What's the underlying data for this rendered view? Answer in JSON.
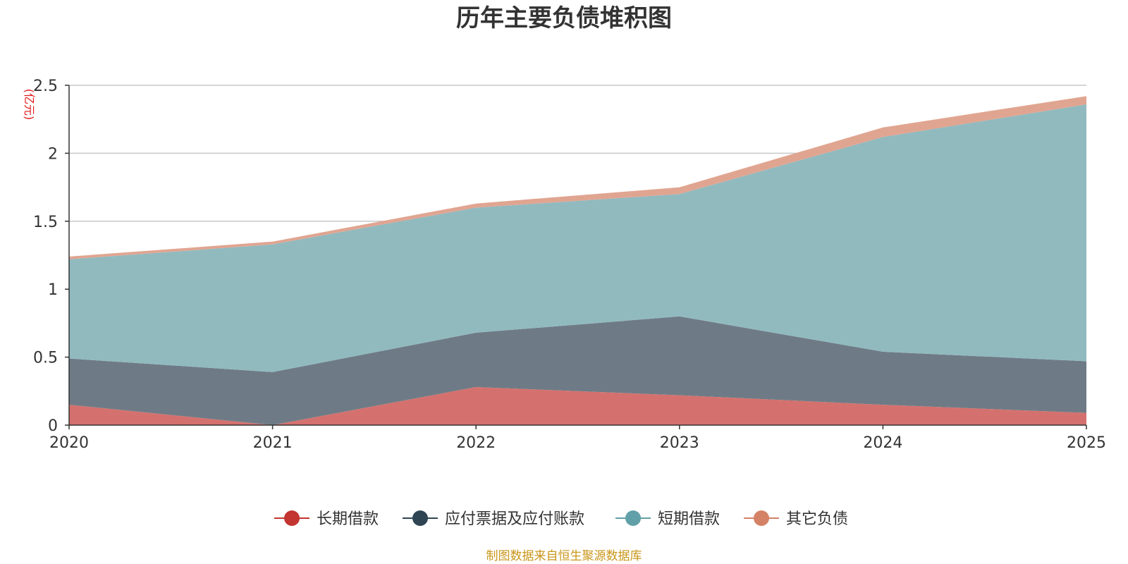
{
  "chart_data": {
    "type": "area",
    "stacked": true,
    "title": "历年主要负债堆积图",
    "unit_label": "(亿元)",
    "x": [
      "2020",
      "2021",
      "2022",
      "2023",
      "2024",
      "2025"
    ],
    "ylim": [
      0,
      2.5
    ],
    "y_ticks": [
      0,
      0.5,
      1,
      1.5,
      2,
      2.5
    ],
    "y_tick_labels": [
      "0",
      "0.5",
      "1",
      "1.5",
      "2",
      "2.5"
    ],
    "grid": true,
    "legend_position": "bottom",
    "series": [
      {
        "name": "长期借款",
        "color": "#c23531",
        "area_color": "#d4716e",
        "values": [
          0.15,
          0.0,
          0.28,
          0.22,
          0.15,
          0.09
        ]
      },
      {
        "name": "应付票据及应付账款",
        "color": "#2f4554",
        "area_color": "#6e7b86",
        "values": [
          0.34,
          0.39,
          0.4,
          0.58,
          0.39,
          0.38
        ]
      },
      {
        "name": "短期借款",
        "color": "#61a0a8",
        "area_color": "#91babf",
        "values": [
          0.73,
          0.94,
          0.92,
          0.9,
          1.58,
          1.89
        ]
      },
      {
        "name": "其它负债",
        "color": "#d48265",
        "area_color": "#e0a591",
        "values": [
          0.02,
          0.02,
          0.03,
          0.05,
          0.07,
          0.06
        ]
      }
    ],
    "source_note": "制图数据来自恒生聚源数据库",
    "source_color": "#c9961a",
    "unit_color": "#e31a1c"
  }
}
